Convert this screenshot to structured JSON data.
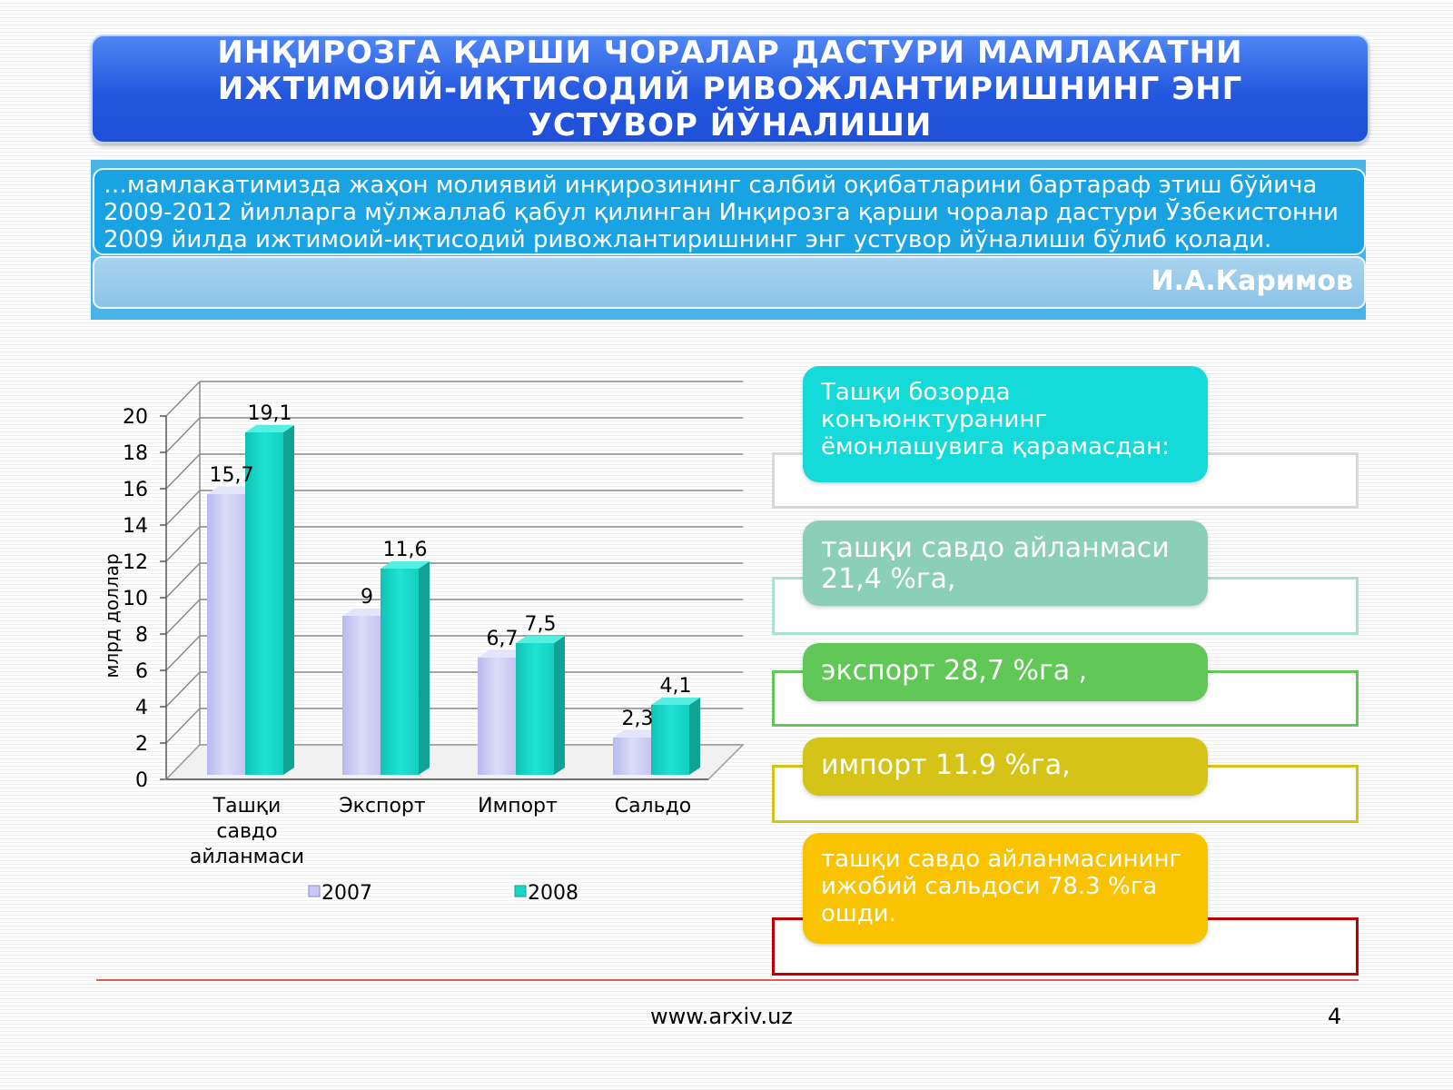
{
  "header": {
    "title": "ИНҚИРОЗГА ҚАРШИ ЧОРАЛАР ДАСТУРИ МАМЛАКАТНИ ИЖТИМОИЙ-ИҚТИСОДИЙ РИВОЖЛАНТИРИШНИНГ ЭНГ УСТУВОР ЙЎНАЛИШИ"
  },
  "quote": {
    "text": "…мамлакатимизда жаҳон молиявий инқирозининг салбий оқибатларини бартараф этиш бўйича\n2009-2012 йилларга мўлжаллаб қабул қилинган Инқирозга қарши чоралар дастури Ўзбекистонни\n2009 йилда ижтимоий-иқтисодий ривожлантиришнинг энг устувор йўналиши бўлиб қолади.",
    "author": "И.А.Каримов"
  },
  "chart_data": {
    "type": "bar",
    "categories": [
      "Ташқи\nсавдо\nайланмаси",
      "Экспорт",
      "Импорт",
      "Сальдо"
    ],
    "series": [
      {
        "name": "2007",
        "values": [
          15.7,
          9,
          6.7,
          2.3
        ],
        "labels": [
          "15,7",
          "9",
          "6,7",
          "2,3"
        ],
        "color": "#c8c8f2"
      },
      {
        "name": "2008",
        "values": [
          19.1,
          11.6,
          7.5,
          4.1
        ],
        "labels": [
          "19,1",
          "11,6",
          "7,5",
          "4,1"
        ],
        "color": "#18d5c6"
      }
    ],
    "ylabel": "млрд доллар",
    "ylim": [
      0,
      20
    ],
    "yticks": [
      0,
      2,
      4,
      6,
      8,
      10,
      12,
      14,
      16,
      18,
      20
    ],
    "grid": true,
    "legend": "bottom"
  },
  "callouts": [
    {
      "text": "Ташқи бозорда\nконъюнктуранинг\nёмонлашувига қарамасдан:",
      "color": "#14dbd9",
      "frame_color": "#d8d8d8"
    },
    {
      "text": "ташқи савдо айланмаси\n21,4 %га,",
      "color": "#8ccfb9",
      "frame_color": "#a8e1d2"
    },
    {
      "text": "экспорт 28,7 %га ,",
      "color": "#61c858",
      "frame_color": "#61c858"
    },
    {
      "text": "импорт 11.9 %га,",
      "color": "#d6c318",
      "frame_color": "#d6c318"
    },
    {
      "text": "ташқи савдо айланмасининг\nижобий сальдоси 78.3 %га\nошди.",
      "color": "#f9c300",
      "frame_color": "#c00000"
    }
  ],
  "footer": {
    "site": "www.arxiv.uz",
    "page": "4"
  }
}
